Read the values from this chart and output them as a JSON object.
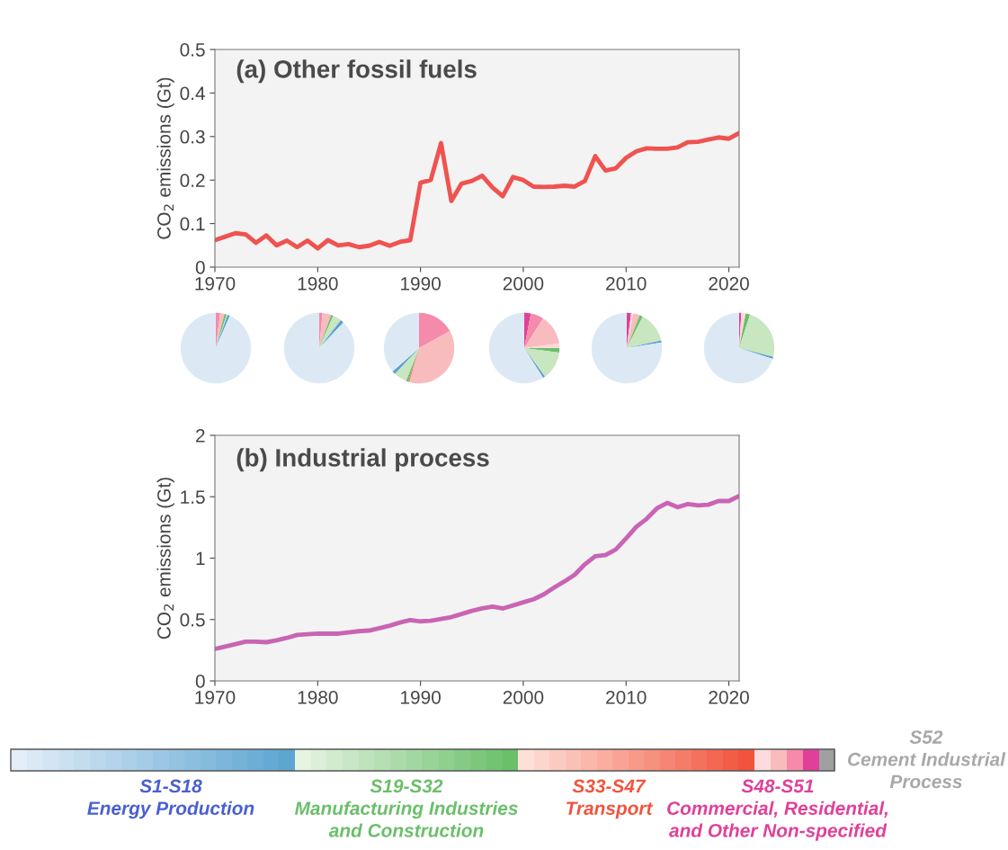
{
  "chart_data": [
    {
      "type": "line",
      "title": "(a) Other fossil fuels",
      "ylabel": "CO$_{2}$ emissions (Gt)",
      "x": [
        1970,
        1971,
        1972,
        1973,
        1974,
        1975,
        1976,
        1977,
        1978,
        1979,
        1980,
        1981,
        1982,
        1983,
        1984,
        1985,
        1986,
        1987,
        1988,
        1989,
        1990,
        1991,
        1992,
        1993,
        1994,
        1995,
        1996,
        1997,
        1998,
        1999,
        2000,
        2001,
        2002,
        2003,
        2004,
        2005,
        2006,
        2007,
        2008,
        2009,
        2010,
        2011,
        2012,
        2013,
        2014,
        2015,
        2016,
        2017,
        2018,
        2019,
        2020,
        2021
      ],
      "series": [
        {
          "color": "#ef5350",
          "values": [
            0.062,
            0.07,
            0.078,
            0.075,
            0.056,
            0.073,
            0.05,
            0.061,
            0.046,
            0.061,
            0.043,
            0.062,
            0.05,
            0.053,
            0.046,
            0.049,
            0.058,
            0.049,
            0.058,
            0.062,
            0.194,
            0.2,
            0.285,
            0.152,
            0.192,
            0.198,
            0.21,
            0.183,
            0.163,
            0.207,
            0.2,
            0.185,
            0.184,
            0.185,
            0.187,
            0.185,
            0.198,
            0.255,
            0.222,
            0.227,
            0.251,
            0.266,
            0.273,
            0.272,
            0.272,
            0.275,
            0.287,
            0.288,
            0.293,
            0.298,
            0.295,
            0.308
          ]
        }
      ],
      "xlim": [
        1970,
        2021
      ],
      "xticks": [
        1970,
        1980,
        1990,
        2000,
        2010,
        2020
      ],
      "ylim": [
        0,
        0.5
      ],
      "yticks": [
        0,
        0.1,
        0.2,
        0.3,
        0.4,
        0.5
      ],
      "grid": false,
      "legend": false
    },
    {
      "type": "pie",
      "categories": [
        null,
        null,
        null,
        null,
        null,
        null
      ],
      "values": [
        2,
        2,
        1,
        0.5,
        1,
        93.5
      ],
      "colors": [
        "#f58aaa",
        "#f8bcbf",
        "#6abf6a",
        "#c8e6c0",
        "#5a9fd0",
        "#dce9f5"
      ]
    },
    {
      "type": "pie",
      "categories": [
        null,
        null,
        null,
        null,
        null,
        null
      ],
      "values": [
        1.5,
        4,
        1,
        4,
        1.5,
        88
      ],
      "colors": [
        "#f58aaa",
        "#f8bcbf",
        "#6abf6a",
        "#c8e6c0",
        "#5a9fd0",
        "#dce9f5"
      ]
    },
    {
      "type": "pie",
      "categories": [
        null,
        null,
        null,
        null,
        null,
        null,
        null
      ],
      "values": [
        17,
        37.5,
        0.5,
        1,
        6,
        1.5,
        36.5
      ],
      "colors": [
        "#f58aaa",
        "#f8bcbf",
        "#f26b5b",
        "#6abf6a",
        "#c8e6c0",
        "#5a9fd0",
        "#dce9f5"
      ]
    },
    {
      "type": "pie",
      "categories": [
        null,
        null,
        null,
        null,
        null,
        null,
        null,
        null
      ],
      "values": [
        3,
        6,
        14,
        2,
        2,
        13,
        1,
        59
      ],
      "colors": [
        "#e0409a",
        "#f58aaa",
        "#f8bcbf",
        "#fcd9d9",
        "#6abf6a",
        "#c8e6c0",
        "#5a9fd0",
        "#dce9f5"
      ]
    },
    {
      "type": "pie",
      "categories": [
        null,
        null,
        null,
        null,
        null,
        null,
        null
      ],
      "values": [
        2,
        1,
        3,
        1.5,
        14,
        1,
        77.5
      ],
      "colors": [
        "#e0409a",
        "#fcd9d9",
        "#f8bcbf",
        "#6abf6a",
        "#c8e6c0",
        "#5a9fd0",
        "#dce9f5"
      ]
    },
    {
      "type": "pie",
      "categories": [
        null,
        null,
        null,
        null,
        null,
        null
      ],
      "values": [
        1,
        2,
        2,
        24,
        1,
        70
      ],
      "colors": [
        "#e0409a",
        "#fcd9d9",
        "#6abf6a",
        "#c8e6c0",
        "#5a9fd0",
        "#dce9f5"
      ]
    },
    {
      "type": "line",
      "title": "(b) Industrial process",
      "ylabel": "CO$_{2}$ emissions (Gt)",
      "x": [
        1970,
        1971,
        1972,
        1973,
        1974,
        1975,
        1976,
        1977,
        1978,
        1979,
        1980,
        1981,
        1982,
        1983,
        1984,
        1985,
        1986,
        1987,
        1988,
        1989,
        1990,
        1991,
        1992,
        1993,
        1994,
        1995,
        1996,
        1997,
        1998,
        1999,
        2000,
        2001,
        2002,
        2003,
        2004,
        2005,
        2006,
        2007,
        2008,
        2009,
        2010,
        2011,
        2012,
        2013,
        2014,
        2015,
        2016,
        2017,
        2018,
        2019,
        2020,
        2021
      ],
      "series": [
        {
          "color": "#c964b4",
          "values": [
            0.26,
            0.28,
            0.3,
            0.32,
            0.32,
            0.315,
            0.33,
            0.35,
            0.375,
            0.38,
            0.385,
            0.385,
            0.385,
            0.395,
            0.405,
            0.41,
            0.43,
            0.45,
            0.475,
            0.495,
            0.485,
            0.49,
            0.505,
            0.52,
            0.545,
            0.57,
            0.59,
            0.605,
            0.59,
            0.615,
            0.64,
            0.665,
            0.705,
            0.76,
            0.81,
            0.865,
            0.95,
            1.015,
            1.025,
            1.07,
            1.16,
            1.255,
            1.32,
            1.405,
            1.45,
            1.415,
            1.44,
            1.43,
            1.435,
            1.465,
            1.465,
            1.505
          ]
        }
      ],
      "xlim": [
        1970,
        2021
      ],
      "xticks": [
        1970,
        1980,
        1990,
        2000,
        2010,
        2020
      ],
      "ylim": [
        0,
        2
      ],
      "yticks": [
        0,
        {
          "value": 0.5,
          "label": "0.5"
        },
        1,
        {
          "value": 1.5,
          "label": "1.5"
        },
        2
      ],
      "grid": false,
      "legend": false
    },
    {
      "type": "other",
      "annotations": [
        "S1-S18\nEnergy Production",
        "S19-S32\nManufacturing Industries\nand Construction",
        "S33-S47\nTransport",
        "S48-S51\nCommercial, Residential,\nand Other Non-specified",
        "S52\nCement Industrial\nProcess"
      ],
      "colors": [
        "#4a5fd0",
        "#6abf6a",
        "#f2543d",
        "#e0409a",
        "#a8a8a8"
      ]
    }
  ]
}
